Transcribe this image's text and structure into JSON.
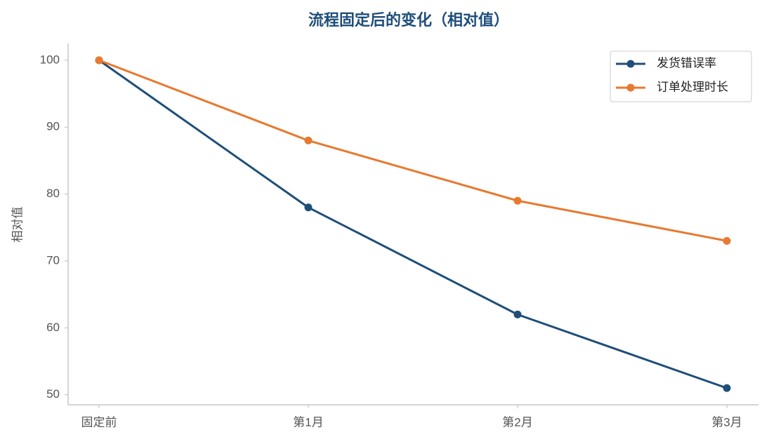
{
  "chart_data": {
    "type": "line",
    "title": "流程固定后的变化（相对值）",
    "y_label": "相对值",
    "categories": [
      "固定前",
      "第1月",
      "第2月",
      "第3月"
    ],
    "series": [
      {
        "name": "发货错误率",
        "color": "#1f4e79",
        "values": [
          100,
          78,
          62,
          51
        ]
      },
      {
        "name": "订单处理时长",
        "color": "#e8792f",
        "values": [
          100,
          88,
          79,
          73
        ]
      }
    ],
    "ylim": [
      48.5,
      102.5
    ],
    "yticks": [
      50,
      60,
      70,
      80,
      90,
      100
    ],
    "grid": false,
    "legend": "upper right"
  }
}
